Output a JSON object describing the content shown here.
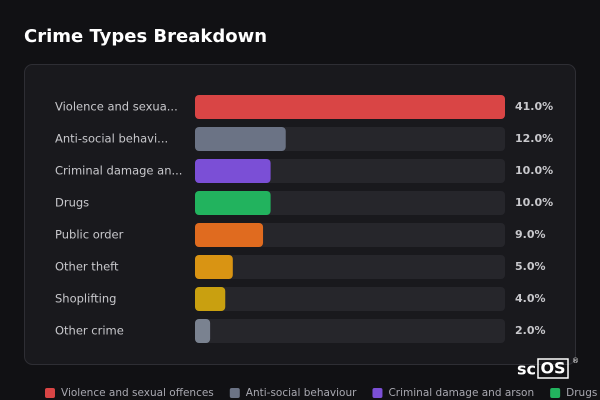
{
  "chart_data": {
    "type": "bar",
    "orientation": "horizontal",
    "title": "Crime Types Breakdown",
    "categories": [
      "Violence and sexua...",
      "Anti-social behavi...",
      "Criminal damage an...",
      "Drugs",
      "Public order",
      "Other theft",
      "Shoplifting",
      "Other crime"
    ],
    "values": [
      41,
      12,
      10,
      10,
      9,
      5,
      4,
      2
    ],
    "value_labels": [
      "41.0%",
      "12.0%",
      "10.0%",
      "10.0%",
      "9.0%",
      "5.0%",
      "4.0%",
      "2.0%"
    ],
    "colors": [
      "#d94545",
      "#6b7385",
      "#7b4fd6",
      "#22b35e",
      "#e06b1f",
      "#d99413",
      "#c9a010",
      "#7a8290"
    ],
    "xlim": [
      0,
      41
    ],
    "legend": [
      "Violence and sexual offences",
      "Anti-social behaviour",
      "Criminal damage and arson",
      "Drugs"
    ],
    "watermark": {
      "prefix": "sc",
      "boxed": "OS",
      "mark": "®"
    }
  }
}
